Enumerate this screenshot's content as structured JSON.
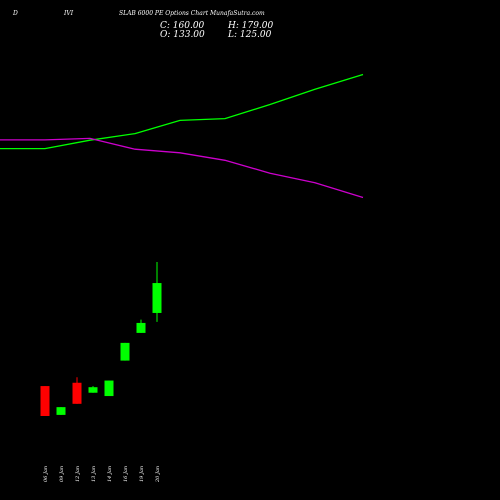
{
  "header": {
    "symbol": "D",
    "expiry": "IVI",
    "title": "SLAB 6000 PE Options Chart MunafaSutra.com",
    "close_text": "C: 160.00",
    "open_text": "O: 133.00",
    "high_text": "H: 179.00",
    "low_text": "L: 125.00"
  },
  "colors": {
    "background": "#000000",
    "up": "#00ff00",
    "down": "#ff0000",
    "line_green": "#00ff00",
    "line_magenta": "#cc00cc",
    "text": "#ffffff"
  },
  "chart_data": {
    "type": "candlestick",
    "categories": [
      "06 Jan",
      "09 Jan",
      "12 Jan",
      "13 Jan",
      "14 Jan",
      "16 Jan",
      "19 Jan",
      "20 Jan"
    ],
    "candles": [
      {
        "date": "06 Jan",
        "open": 67,
        "high": 67,
        "low": 40,
        "close": 40
      },
      {
        "date": "09 Jan",
        "open": 41,
        "high": 48,
        "low": 41,
        "close": 48
      },
      {
        "date": "12 Jan",
        "open": 70,
        "high": 75,
        "low": 51,
        "close": 51
      },
      {
        "date": "13 Jan",
        "open": 61,
        "high": 67,
        "low": 61,
        "close": 66
      },
      {
        "date": "14 Jan",
        "open": 58,
        "high": 72,
        "low": 58,
        "close": 72
      },
      {
        "date": "16 Jan",
        "open": 90,
        "high": 106,
        "low": 90,
        "close": 106
      },
      {
        "date": "19 Jan",
        "open": 115,
        "high": 127,
        "low": 115,
        "close": 124
      },
      {
        "date": "20 Jan",
        "open": 133,
        "high": 179,
        "low": 125,
        "close": 160
      }
    ],
    "overlay_scale": [
      0,
      100
    ],
    "overlays": [
      {
        "color": "#00ff00",
        "x": [
          0,
          45,
          90,
          135,
          180,
          225,
          270,
          315,
          363
        ],
        "values": [
          77.8,
          77.8,
          80.6,
          82.8,
          87.2,
          87.8,
          92.5,
          97.6,
          102.5
        ]
      },
      {
        "color": "#cc00cc",
        "x": [
          0,
          45,
          90,
          135,
          180,
          225,
          270,
          315,
          363
        ],
        "values": [
          80.7,
          80.7,
          81.2,
          77.6,
          76.4,
          73.9,
          69.6,
          66.4,
          61.5
        ]
      }
    ]
  }
}
